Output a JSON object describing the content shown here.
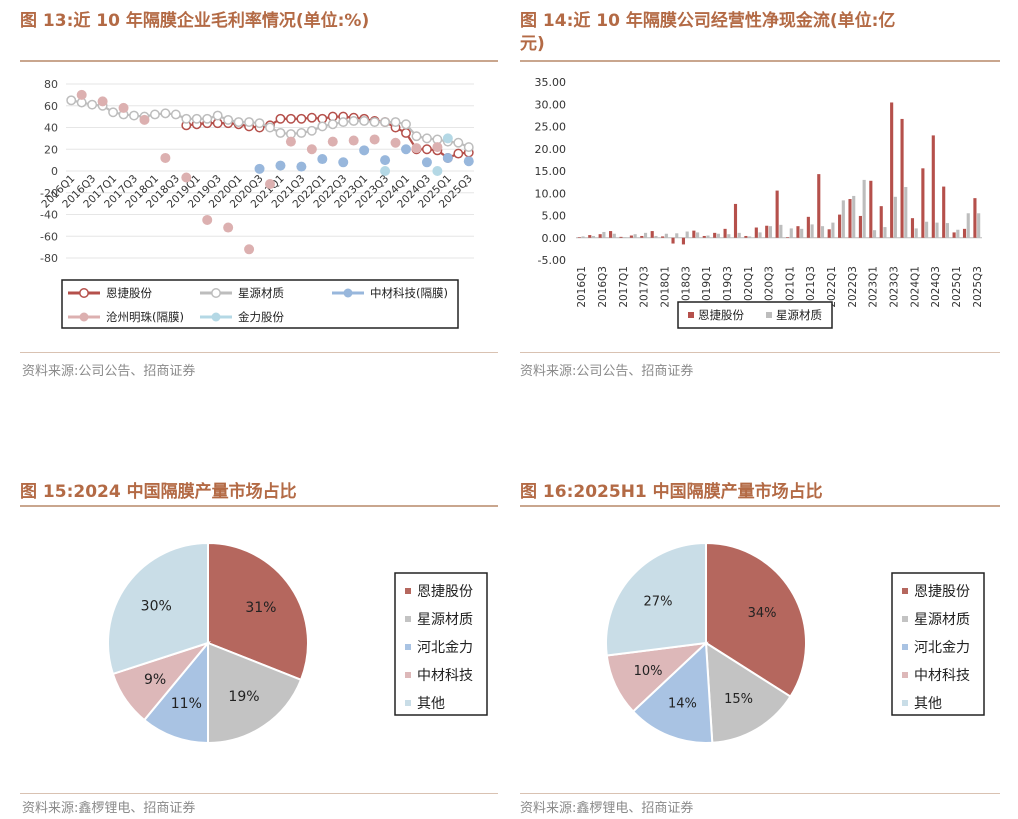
{
  "fig13": {
    "title": "图 13:近 10 年隔膜企业毛利率情况(单位:%)",
    "source": "资料来源:公司公告、招商证券"
  },
  "fig14": {
    "title": "图 14:近 10 年隔膜公司经营性净现金流(单位:亿元)",
    "title_line1": "图 14:近 10 年隔膜公司经营性净现金流(单位:亿",
    "title_line2": "元)",
    "source": "资料来源:公司公告、招商证券"
  },
  "fig15": {
    "title": "图 15:2024 中国隔膜产量市场占比",
    "source": "资料来源:鑫椤锂电、招商证券"
  },
  "fig16": {
    "title": "图 16:2025H1 中国隔膜产量市场占比",
    "source": "资料来源:鑫椤锂电、招商证券"
  },
  "chart_data": [
    {
      "id": "fig13",
      "type": "line",
      "ylim": [
        -80,
        80
      ],
      "yticks": [
        -80,
        -60,
        -40,
        -20,
        0,
        20,
        40,
        60,
        80
      ],
      "x": [
        "2016Q1",
        "2016Q2",
        "2016Q3",
        "2016Q4",
        "2017Q1",
        "2017Q2",
        "2017Q3",
        "2017Q4",
        "2018Q1",
        "2018Q2",
        "2018Q3",
        "2018Q4",
        "2019Q1",
        "2019Q2",
        "2019Q3",
        "2019Q4",
        "2020Q1",
        "2020Q2",
        "2020Q3",
        "2020Q4",
        "2021Q1",
        "2021Q2",
        "2021Q3",
        "2021Q4",
        "2022Q1",
        "2022Q2",
        "2022Q3",
        "2022Q4",
        "2023Q1",
        "2023Q2",
        "2023Q3",
        "2023Q4",
        "2024Q1",
        "2024Q2",
        "2024Q3",
        "2024Q4",
        "2025Q1",
        "2025Q2",
        "2025Q3"
      ],
      "xticks": [
        "2016Q1",
        "2016Q3",
        "2017Q1",
        "2017Q3",
        "2018Q1",
        "2018Q3",
        "2019Q1",
        "2019Q3",
        "2020Q1",
        "2020Q3",
        "2021Q1",
        "2021Q3",
        "2022Q1",
        "2022Q3",
        "2023Q1",
        "2023Q3",
        "2024Q1",
        "2024Q3",
        "2025Q1",
        "2025Q3"
      ],
      "legend_position": "bottom",
      "series": [
        {
          "name": "恩捷股份",
          "color": "#b5504b",
          "style": "line-hollow",
          "values": [
            null,
            null,
            null,
            null,
            null,
            null,
            null,
            null,
            null,
            null,
            null,
            42,
            43,
            44,
            44,
            44,
            43,
            41,
            40,
            42,
            48,
            48,
            48,
            49,
            48,
            50,
            50,
            49,
            48,
            46,
            45,
            40,
            35,
            20,
            20,
            19,
            12,
            16,
            17
          ]
        },
        {
          "name": "星源材质",
          "color": "#bdbdbd",
          "style": "line-hollow",
          "values": [
            65,
            63,
            61,
            60,
            54,
            52,
            51,
            50,
            52,
            53,
            52,
            48,
            48,
            48,
            51,
            47,
            45,
            45,
            44,
            40,
            35,
            34,
            35,
            37,
            41,
            43,
            45,
            46,
            46,
            45,
            45,
            45,
            43,
            32,
            30,
            29,
            27,
            26,
            22
          ]
        },
        {
          "name": "中材科技(隔膜)",
          "color": "#98b7dc",
          "style": "marker",
          "values": [
            null,
            null,
            null,
            null,
            null,
            null,
            null,
            null,
            null,
            null,
            null,
            null,
            null,
            null,
            null,
            null,
            null,
            null,
            2,
            null,
            5,
            null,
            4,
            null,
            11,
            null,
            8,
            null,
            19,
            null,
            10,
            null,
            20,
            null,
            8,
            null,
            12,
            null,
            9
          ]
        },
        {
          "name": "沧州明珠(隔膜)",
          "color": "#dcb0b0",
          "style": "marker",
          "values": [
            null,
            70,
            null,
            64,
            null,
            58,
            null,
            47,
            null,
            12,
            null,
            -6,
            null,
            -45,
            null,
            -52,
            null,
            -72,
            null,
            -12,
            null,
            27,
            null,
            20,
            null,
            27,
            null,
            28,
            null,
            29,
            null,
            26,
            null,
            21,
            null,
            22,
            null,
            null,
            null
          ]
        },
        {
          "name": "金力股份",
          "color": "#b4d8e5",
          "style": "marker",
          "values": [
            null,
            null,
            null,
            null,
            null,
            null,
            null,
            null,
            null,
            null,
            null,
            null,
            null,
            null,
            null,
            null,
            null,
            null,
            null,
            null,
            null,
            null,
            null,
            null,
            null,
            null,
            null,
            null,
            null,
            null,
            0,
            null,
            null,
            null,
            null,
            0,
            30,
            null,
            null
          ]
        }
      ]
    },
    {
      "id": "fig14",
      "type": "bar",
      "ylim": [
        -5,
        35
      ],
      "yticks": [
        "-5.00",
        "0.00",
        "5.00",
        "10.00",
        "15.00",
        "20.00",
        "25.00",
        "30.00",
        "35.00"
      ],
      "categories": [
        "2016Q1",
        "2016Q2",
        "2016Q3",
        "2016Q4",
        "2017Q1",
        "2017Q2",
        "2017Q3",
        "2017Q4",
        "2018Q1",
        "2018Q2",
        "2018Q3",
        "2018Q4",
        "2019Q1",
        "2019Q2",
        "2019Q3",
        "2019Q4",
        "2020Q1",
        "2020Q2",
        "2020Q3",
        "2020Q4",
        "2021Q1",
        "2021Q2",
        "2021Q3",
        "2021Q4",
        "2022Q1",
        "2022Q2",
        "2022Q3",
        "2022Q4",
        "2023Q1",
        "2023Q2",
        "2023Q3",
        "2023Q4",
        "2024Q1",
        "2024Q2",
        "2024Q3",
        "2024Q4",
        "2025Q1",
        "2025Q2",
        "2025Q3"
      ],
      "xticks": [
        "2016Q1",
        "2016Q3",
        "2017Q1",
        "2017Q3",
        "2018Q1",
        "2018Q3",
        "2019Q1",
        "2019Q3",
        "2020Q1",
        "2020Q3",
        "2021Q1",
        "2021Q3",
        "2022Q1",
        "2022Q3",
        "2023Q1",
        "2023Q3",
        "2024Q1",
        "2024Q3",
        "2025Q1",
        "2025Q3"
      ],
      "legend_position": "bottom",
      "series": [
        {
          "name": "恩捷股份",
          "color": "#b5504b",
          "values": [
            0.1,
            0.6,
            0.8,
            1.5,
            0.2,
            0.5,
            0.4,
            1.5,
            0.3,
            -1.3,
            -1.5,
            1.6,
            0.4,
            1.1,
            2.0,
            7.6,
            0.4,
            2.3,
            2.7,
            10.6,
            0.1,
            2.6,
            4.7,
            14.3,
            1.9,
            5.2,
            8.7,
            4.9,
            12.8,
            7.1,
            30.4,
            26.7,
            4.4,
            15.6,
            23.0,
            11.5,
            1.2,
            2.0,
            8.9
          ]
        },
        {
          "name": "星源材质",
          "color": "#bdbdbd",
          "values": [
            0.3,
            0.4,
            1.3,
            0.9,
            0.1,
            0.8,
            1.1,
            0.4,
            0.9,
            1.0,
            1.4,
            1.2,
            0.5,
            0.9,
            0.8,
            1.1,
            0.3,
            1.2,
            2.6,
            2.9,
            2.1,
            2.0,
            3.0,
            2.6,
            3.4,
            8.4,
            9.4,
            13.0,
            1.7,
            2.4,
            9.2,
            11.4,
            2.1,
            3.6,
            3.4,
            3.3,
            1.8,
            5.5,
            5.5
          ]
        }
      ]
    },
    {
      "id": "fig15",
      "type": "pie",
      "labels": [
        "恩捷股份",
        "星源材质",
        "河北金力",
        "中材科技",
        "其他"
      ],
      "values": [
        31,
        19,
        11,
        9,
        30
      ],
      "value_labels": [
        "31%",
        "19%",
        "11%",
        "9%",
        "30%"
      ],
      "colors": [
        "#b5675e",
        "#c3c3c3",
        "#a9c3e3",
        "#ddb8b9",
        "#c9dde7"
      ],
      "legend_position": "right"
    },
    {
      "id": "fig16",
      "type": "pie",
      "labels": [
        "恩捷股份",
        "星源材质",
        "河北金力",
        "中材科技",
        "其他"
      ],
      "values": [
        34,
        15,
        14,
        10,
        27
      ],
      "value_labels": [
        "34%",
        "15%",
        "14%",
        "10%",
        "27%"
      ],
      "colors": [
        "#b5675e",
        "#c3c3c3",
        "#a9c3e3",
        "#ddb8b9",
        "#c9dde7"
      ],
      "legend_position": "right"
    }
  ]
}
